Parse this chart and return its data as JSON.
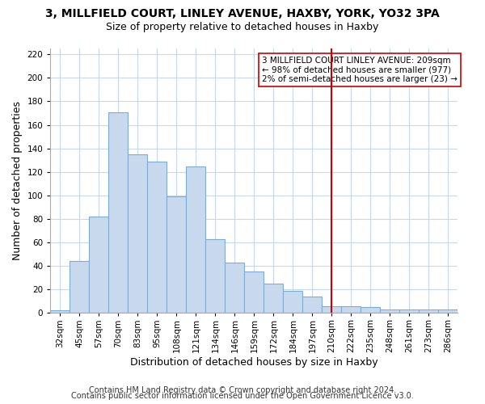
{
  "title": "3, MILLFIELD COURT, LINLEY AVENUE, HAXBY, YORK, YO32 3PA",
  "subtitle": "Size of property relative to detached houses in Haxby",
  "xlabel": "Distribution of detached houses by size in Haxby",
  "ylabel": "Number of detached properties",
  "bar_labels": [
    "32sqm",
    "45sqm",
    "57sqm",
    "70sqm",
    "83sqm",
    "95sqm",
    "108sqm",
    "121sqm",
    "134sqm",
    "146sqm",
    "159sqm",
    "172sqm",
    "184sqm",
    "197sqm",
    "210sqm",
    "222sqm",
    "235sqm",
    "248sqm",
    "261sqm",
    "273sqm",
    "286sqm"
  ],
  "bar_heights": [
    2,
    44,
    82,
    171,
    135,
    129,
    99,
    125,
    63,
    43,
    35,
    25,
    19,
    14,
    6,
    6,
    5,
    3,
    3,
    3,
    3
  ],
  "bar_color": "#c8d9ee",
  "bar_edge_color": "#7eacd4",
  "vline_x_index": 14,
  "vline_color": "#cc0000",
  "annotation_text": "3 MILLFIELD COURT LINLEY AVENUE: 209sqm\n← 98% of detached houses are smaller (977)\n2% of semi-detached houses are larger (23) →",
  "annotation_box_color": "#ffffff",
  "annotation_box_edge": "#cc0000",
  "ylim": [
    0,
    225
  ],
  "yticks": [
    0,
    20,
    40,
    60,
    80,
    100,
    120,
    140,
    160,
    180,
    200,
    220
  ],
  "footer1": "Contains HM Land Registry data © Crown copyright and database right 2024.",
  "footer2": "Contains public sector information licensed under the Open Government Licence v3.0.",
  "background_color": "#ffffff",
  "grid_color": "#c8d8ec",
  "title_fontsize": 10,
  "subtitle_fontsize": 9,
  "axis_label_fontsize": 9,
  "tick_fontsize": 7.5,
  "footer_fontsize": 7,
  "annotation_fontsize": 7.5
}
